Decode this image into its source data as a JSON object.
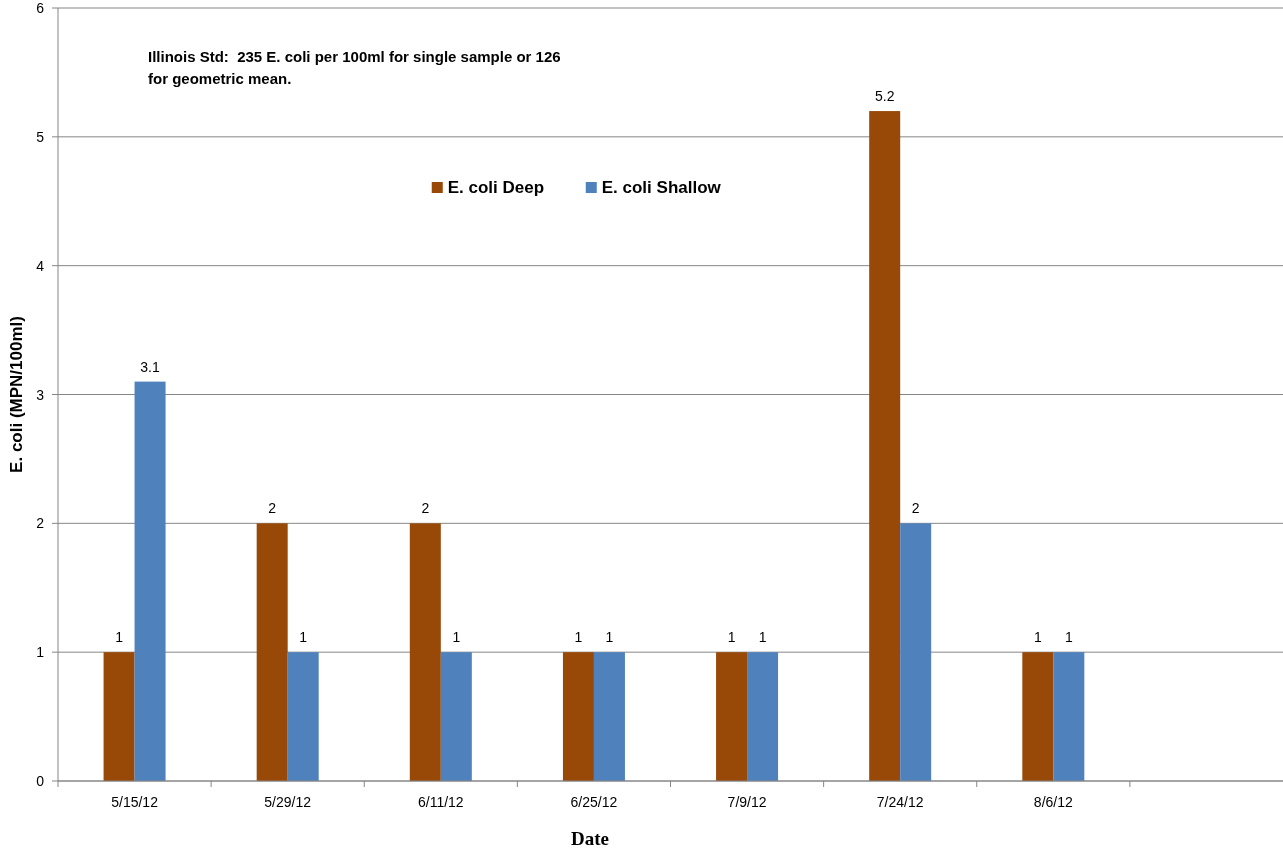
{
  "chart_data": {
    "type": "bar",
    "xlabel": "Date",
    "ylabel": "E. coli (MPN/100ml)",
    "categories": [
      "5/15/12",
      "5/29/12",
      "6/11/12",
      "6/25/12",
      "7/9/12",
      "7/24/12",
      "8/6/12",
      null
    ],
    "series": [
      {
        "name": "E. coli Deep",
        "color": "#984807",
        "values": [
          1,
          2,
          2,
          1,
          1,
          5.2,
          1,
          null
        ]
      },
      {
        "name": "E. coli Shallow",
        "color": "#4f81bd",
        "values": [
          3.1,
          1,
          1,
          1,
          1,
          2,
          1,
          null
        ]
      }
    ],
    "ylim": [
      0,
      6
    ],
    "yticks": [
      0,
      1,
      2,
      3,
      4,
      5,
      6
    ],
    "grid": "y",
    "legend": "top",
    "data_labels": true,
    "annotations": [
      "Illinois Std:  235 E. coli per 100ml for single sample or 126 for geometric mean."
    ]
  }
}
